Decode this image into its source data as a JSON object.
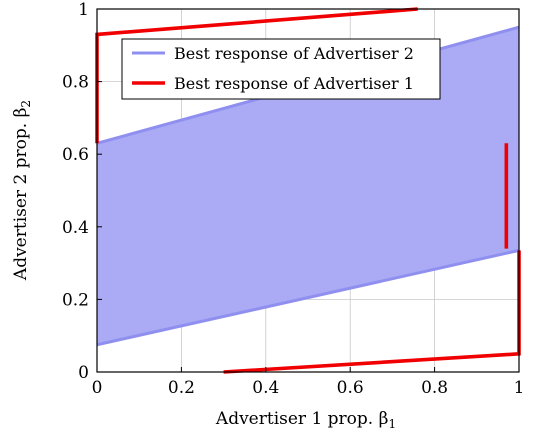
{
  "chart_data": {
    "type": "area",
    "xlabel": "Advertiser 1 prop. β",
    "xlabel_sub": "1",
    "ylabel": "Advertiser 2 prop. β",
    "ylabel_sub": "2",
    "xlim": [
      0,
      1
    ],
    "ylim": [
      0,
      1
    ],
    "xticks": [
      "0",
      "0.2",
      "0.4",
      "0.6",
      "0.8",
      "1"
    ],
    "yticks": [
      "0",
      "0.2",
      "0.4",
      "0.6",
      "0.8",
      "1"
    ],
    "grid": true,
    "legend_position": "top-right",
    "series": [
      {
        "name": "Best response of Advertiser 2",
        "kind": "band",
        "color": "#8f8ff0",
        "fill": "#aaaaf5",
        "x": [
          0,
          1
        ],
        "lower": [
          0.075,
          0.335
        ],
        "upper": [
          0.63,
          0.95
        ]
      },
      {
        "name": "Best response of Advertiser 1",
        "kind": "segments",
        "color": "#f00000",
        "segments": [
          [
            [
              0.3,
              0
            ],
            [
              1,
              0.05
            ],
            [
              1,
              0.335
            ]
          ],
          [
            [
              0,
              0.63
            ],
            [
              0,
              0.93
            ],
            [
              0.76,
              1
            ]
          ],
          [
            [
              0.97,
              0.34
            ],
            [
              0.97,
              0.63
            ]
          ]
        ]
      }
    ]
  }
}
